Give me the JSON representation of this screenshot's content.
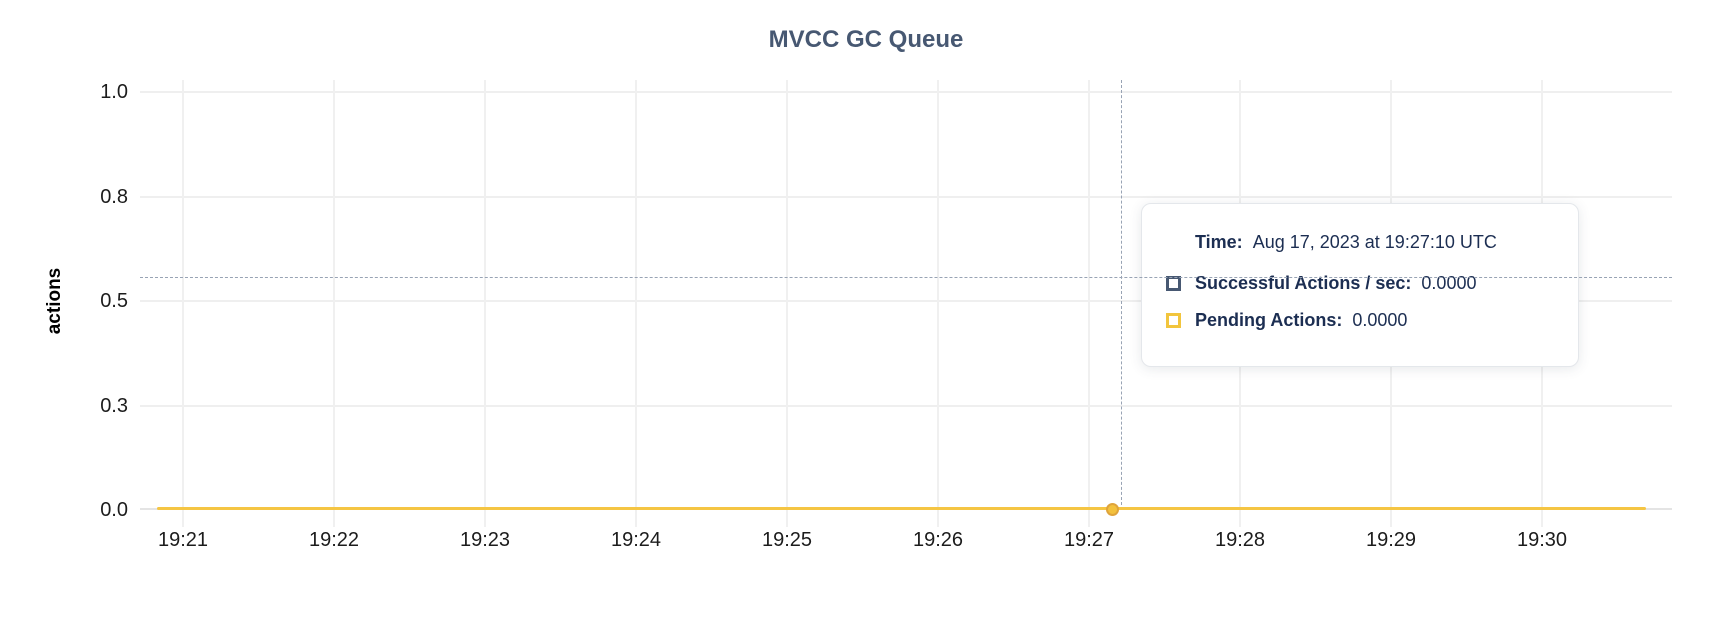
{
  "title": "MVCC GC Queue",
  "colors": {
    "title_text": "#475872",
    "pending_line": "#f5c543",
    "successful_swatch": "#475872",
    "pending_swatch": "#f2c53d",
    "tooltip_text": "#1c2e52",
    "crosshair": "#98a3b4"
  },
  "y_axis": {
    "label": "actions",
    "ticks": [
      {
        "label": "1.0",
        "value": 1.0
      },
      {
        "label": "0.8",
        "value": 0.75
      },
      {
        "label": "0.5",
        "value": 0.5
      },
      {
        "label": "0.3",
        "value": 0.25
      },
      {
        "label": "0.0",
        "value": 0.0
      }
    ]
  },
  "x_axis": {
    "ticks": [
      "19:21",
      "19:22",
      "19:23",
      "19:24",
      "19:25",
      "19:26",
      "19:27",
      "19:28",
      "19:29",
      "19:30"
    ]
  },
  "tooltip": {
    "time_label": "Time:",
    "time_value": "Aug 17, 2023 at 19:27:10 UTC",
    "series": [
      {
        "name": "successful-actions",
        "label": "Successful Actions / sec:",
        "value": "0.0000",
        "swatch_color": "#475872"
      },
      {
        "name": "pending-actions",
        "label": "Pending Actions:",
        "value": "0.0000",
        "swatch_color": "#f2c53d"
      }
    ]
  },
  "chart_data": {
    "type": "line",
    "title": "MVCC GC Queue",
    "xlabel": "",
    "ylabel": "actions",
    "x": [
      "19:21",
      "19:22",
      "19:23",
      "19:24",
      "19:25",
      "19:26",
      "19:27",
      "19:28",
      "19:29",
      "19:30"
    ],
    "series": [
      {
        "name": "Successful Actions / sec",
        "color": "#475872",
        "values": [
          0,
          0,
          0,
          0,
          0,
          0,
          0,
          0,
          0,
          0
        ]
      },
      {
        "name": "Pending Actions",
        "color": "#f5c543",
        "values": [
          0,
          0,
          0,
          0,
          0,
          0,
          0,
          0,
          0,
          0
        ]
      }
    ],
    "ylim": [
      0,
      1.0
    ],
    "y_tick_labels": [
      "0.0",
      "0.3",
      "0.5",
      "0.8",
      "1.0"
    ],
    "grid": true,
    "legend_position": "tooltip",
    "hover_point": {
      "time": "Aug 17, 2023 at 19:27:10 UTC",
      "x": "19:27:10",
      "successful_actions_per_sec": 0.0,
      "pending_actions": 0.0
    }
  }
}
